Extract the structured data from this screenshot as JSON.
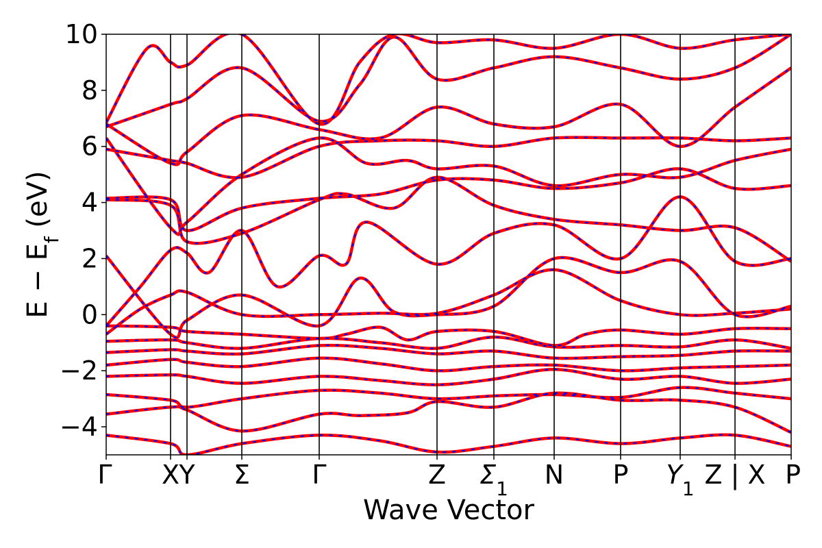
{
  "chart_data": {
    "type": "line",
    "title": "",
    "xlabel": "Wave Vector",
    "ylabel": "E − E_f (eV)",
    "ylabel_parts": {
      "prefix": "E − E",
      "subscript": "f",
      "suffix": " (eV)"
    },
    "ylim": [
      -5,
      10
    ],
    "yticks": [
      -4,
      -2,
      0,
      2,
      4,
      6,
      8,
      10
    ],
    "ytick_labels": [
      "−4",
      "−2",
      "0",
      "2",
      "4",
      "6",
      "8",
      "10"
    ],
    "grid": false,
    "legend": "none",
    "kpath": [
      {
        "label": "Γ",
        "sub": "",
        "x": 0.0
      },
      {
        "label": "X",
        "sub": "",
        "x": 0.094
      },
      {
        "label": "Y",
        "sub": "",
        "x": 0.118
      },
      {
        "label": "Σ",
        "sub": "",
        "x": 0.198
      },
      {
        "label": "Γ",
        "sub": "",
        "x": 0.311
      },
      {
        "label": "Z",
        "sub": "",
        "x": 0.483
      },
      {
        "label": "Σ",
        "sub": "1",
        "x": 0.566
      },
      {
        "label": "N",
        "sub": "",
        "x": 0.654
      },
      {
        "label": "P",
        "sub": "",
        "x": 0.751
      },
      {
        "label": "Y",
        "sub": "1",
        "x": 0.838
      },
      {
        "label": "Z | X",
        "sub": "",
        "x": 0.918
      },
      {
        "label": "P",
        "sub": "",
        "x": 1.0
      }
    ],
    "series": [
      {
        "style": "red solid",
        "bands": [
          [
            [
              0.0,
              -4.3
            ],
            [
              0.094,
              -4.6
            ],
            [
              0.118,
              -5.0
            ],
            [
              0.198,
              -4.6
            ],
            [
              0.311,
              -4.3
            ],
            [
              0.4,
              -4.5
            ],
            [
              0.483,
              -4.9
            ],
            [
              0.566,
              -4.7
            ],
            [
              0.654,
              -4.4
            ],
            [
              0.751,
              -4.6
            ],
            [
              0.838,
              -4.4
            ],
            [
              0.918,
              -4.3
            ],
            [
              1.0,
              -4.7
            ]
          ],
          [
            [
              0.0,
              -3.55
            ],
            [
              0.094,
              -3.3
            ],
            [
              0.118,
              -3.4
            ],
            [
              0.198,
              -4.15
            ],
            [
              0.311,
              -3.55
            ],
            [
              0.37,
              -3.6
            ],
            [
              0.44,
              -3.5
            ],
            [
              0.483,
              -3.1
            ],
            [
              0.566,
              -3.3
            ],
            [
              0.654,
              -2.8
            ],
            [
              0.751,
              -3.05
            ],
            [
              0.838,
              -3.05
            ],
            [
              0.918,
              -3.3
            ],
            [
              1.0,
              -4.2
            ]
          ],
          [
            [
              0.0,
              -2.85
            ],
            [
              0.094,
              -3.05
            ],
            [
              0.118,
              -3.3
            ],
            [
              0.198,
              -3.0
            ],
            [
              0.311,
              -2.7
            ],
            [
              0.4,
              -2.8
            ],
            [
              0.483,
              -3.0
            ],
            [
              0.566,
              -2.9
            ],
            [
              0.654,
              -2.85
            ],
            [
              0.751,
              -2.95
            ],
            [
              0.838,
              -2.6
            ],
            [
              0.918,
              -2.8
            ],
            [
              1.0,
              -3.0
            ]
          ],
          [
            [
              0.0,
              -2.2
            ],
            [
              0.094,
              -2.15
            ],
            [
              0.118,
              -2.2
            ],
            [
              0.198,
              -2.45
            ],
            [
              0.311,
              -2.2
            ],
            [
              0.4,
              -2.35
            ],
            [
              0.483,
              -2.5
            ],
            [
              0.566,
              -2.3
            ],
            [
              0.654,
              -1.95
            ],
            [
              0.751,
              -2.3
            ],
            [
              0.838,
              -2.2
            ],
            [
              0.918,
              -2.45
            ],
            [
              1.0,
              -2.3
            ]
          ],
          [
            [
              0.0,
              -1.8
            ],
            [
              0.094,
              -1.6
            ],
            [
              0.118,
              -1.7
            ],
            [
              0.198,
              -1.85
            ],
            [
              0.311,
              -1.55
            ],
            [
              0.4,
              -1.75
            ],
            [
              0.483,
              -2.0
            ],
            [
              0.566,
              -1.85
            ],
            [
              0.654,
              -1.8
            ],
            [
              0.751,
              -2.0
            ],
            [
              0.838,
              -1.9
            ],
            [
              0.918,
              -1.85
            ],
            [
              1.0,
              -1.8
            ]
          ],
          [
            [
              0.0,
              -1.35
            ],
            [
              0.094,
              -1.25
            ],
            [
              0.118,
              -1.3
            ],
            [
              0.198,
              -1.4
            ],
            [
              0.311,
              -1.1
            ],
            [
              0.4,
              -1.2
            ],
            [
              0.483,
              -1.4
            ],
            [
              0.566,
              -1.3
            ],
            [
              0.654,
              -1.55
            ],
            [
              0.751,
              -1.5
            ],
            [
              0.838,
              -1.45
            ],
            [
              0.918,
              -1.3
            ],
            [
              1.0,
              -1.3
            ]
          ],
          [
            [
              0.0,
              -0.95
            ],
            [
              0.094,
              -0.9
            ],
            [
              0.118,
              -1.0
            ],
            [
              0.198,
              -1.2
            ],
            [
              0.311,
              -0.85
            ],
            [
              0.4,
              -1.0
            ],
            [
              0.483,
              -1.2
            ],
            [
              0.566,
              -0.8
            ],
            [
              0.654,
              -1.15
            ],
            [
              0.751,
              -1.1
            ],
            [
              0.838,
              -1.15
            ],
            [
              0.918,
              -0.9
            ],
            [
              1.0,
              -1.2
            ]
          ],
          [
            [
              0.0,
              -0.4
            ],
            [
              0.094,
              -0.45
            ],
            [
              0.118,
              -0.6
            ],
            [
              0.198,
              -0.7
            ],
            [
              0.311,
              -0.85
            ],
            [
              0.35,
              -0.7
            ],
            [
              0.4,
              -0.45
            ],
            [
              0.44,
              -0.9
            ],
            [
              0.483,
              -0.6
            ],
            [
              0.566,
              -0.6
            ],
            [
              0.654,
              -1.1
            ],
            [
              0.7,
              -0.7
            ],
            [
              0.751,
              -0.55
            ],
            [
              0.838,
              -0.7
            ],
            [
              0.918,
              -0.5
            ],
            [
              1.0,
              -0.5
            ]
          ],
          [
            [
              0.0,
              -0.7
            ],
            [
              0.05,
              0.2
            ],
            [
              0.094,
              0.7
            ],
            [
              0.118,
              0.8
            ],
            [
              0.198,
              0.0
            ],
            [
              0.311,
              0.0
            ],
            [
              0.4,
              0.05
            ],
            [
              0.483,
              0.05
            ],
            [
              0.566,
              0.7
            ],
            [
              0.654,
              1.6
            ],
            [
              0.751,
              0.5
            ],
            [
              0.838,
              0.0
            ],
            [
              0.918,
              0.05
            ],
            [
              1.0,
              0.2
            ]
          ],
          [
            [
              0.0,
              2.1
            ],
            [
              0.094,
              -0.7
            ],
            [
              0.118,
              -0.2
            ],
            [
              0.198,
              0.7
            ],
            [
              0.311,
              -0.4
            ],
            [
              0.37,
              1.3
            ],
            [
              0.42,
              0.1
            ],
            [
              0.483,
              0.0
            ],
            [
              0.566,
              0.3
            ],
            [
              0.654,
              2.0
            ],
            [
              0.751,
              1.5
            ],
            [
              0.838,
              1.9
            ],
            [
              0.918,
              0.0
            ],
            [
              1.0,
              0.3
            ]
          ],
          [
            [
              0.0,
              -0.4
            ],
            [
              0.05,
              1.0
            ],
            [
              0.094,
              2.3
            ],
            [
              0.118,
              2.2
            ],
            [
              0.15,
              1.5
            ],
            [
              0.198,
              3.0
            ],
            [
              0.25,
              1.0
            ],
            [
              0.311,
              2.1
            ],
            [
              0.35,
              1.8
            ],
            [
              0.38,
              3.3
            ],
            [
              0.483,
              1.8
            ],
            [
              0.566,
              2.9
            ],
            [
              0.654,
              3.2
            ],
            [
              0.751,
              2.0
            ],
            [
              0.838,
              4.2
            ],
            [
              0.918,
              1.9
            ],
            [
              1.0,
              2.0
            ]
          ],
          [
            [
              0.0,
              4.1
            ],
            [
              0.094,
              3.9
            ],
            [
              0.118,
              2.6
            ],
            [
              0.198,
              2.9
            ],
            [
              0.311,
              4.1
            ],
            [
              0.35,
              4.3
            ],
            [
              0.42,
              3.8
            ],
            [
              0.483,
              4.9
            ],
            [
              0.566,
              3.9
            ],
            [
              0.654,
              3.4
            ],
            [
              0.751,
              3.2
            ],
            [
              0.838,
              3.0
            ],
            [
              0.918,
              3.1
            ],
            [
              1.0,
              1.9
            ]
          ],
          [
            [
              0.0,
              4.15
            ],
            [
              0.094,
              4.1
            ],
            [
              0.118,
              3.0
            ],
            [
              0.198,
              3.8
            ],
            [
              0.311,
              4.15
            ],
            [
              0.4,
              4.3
            ],
            [
              0.483,
              4.8
            ],
            [
              0.566,
              4.8
            ],
            [
              0.654,
              4.5
            ],
            [
              0.751,
              4.7
            ],
            [
              0.838,
              5.2
            ],
            [
              0.918,
              4.5
            ],
            [
              1.0,
              4.6
            ]
          ],
          [
            [
              0.0,
              6.3
            ],
            [
              0.094,
              3.1
            ],
            [
              0.118,
              3.3
            ],
            [
              0.198,
              5.0
            ],
            [
              0.311,
              6.3
            ],
            [
              0.38,
              5.4
            ],
            [
              0.44,
              5.5
            ],
            [
              0.483,
              5.2
            ],
            [
              0.566,
              5.3
            ],
            [
              0.654,
              4.6
            ],
            [
              0.751,
              5.0
            ],
            [
              0.838,
              4.9
            ],
            [
              0.918,
              5.5
            ],
            [
              1.0,
              5.9
            ]
          ],
          [
            [
              0.0,
              5.9
            ],
            [
              0.094,
              5.5
            ],
            [
              0.118,
              5.4
            ],
            [
              0.198,
              4.9
            ],
            [
              0.311,
              6.0
            ],
            [
              0.4,
              6.2
            ],
            [
              0.483,
              6.2
            ],
            [
              0.566,
              6.0
            ],
            [
              0.654,
              6.3
            ],
            [
              0.751,
              6.3
            ],
            [
              0.838,
              6.3
            ],
            [
              0.918,
              6.2
            ],
            [
              1.0,
              6.3
            ]
          ],
          [
            [
              0.0,
              6.8
            ],
            [
              0.094,
              5.4
            ],
            [
              0.118,
              5.8
            ],
            [
              0.198,
              7.1
            ],
            [
              0.311,
              6.6
            ],
            [
              0.4,
              6.3
            ],
            [
              0.483,
              7.4
            ],
            [
              0.566,
              6.8
            ],
            [
              0.654,
              6.7
            ],
            [
              0.751,
              7.5
            ],
            [
              0.838,
              6.0
            ],
            [
              0.918,
              7.4
            ],
            [
              1.0,
              8.8
            ]
          ],
          [
            [
              0.0,
              6.7
            ],
            [
              0.094,
              7.5
            ],
            [
              0.118,
              7.7
            ],
            [
              0.198,
              8.8
            ],
            [
              0.311,
              6.9
            ],
            [
              0.37,
              8.2
            ],
            [
              0.42,
              9.9
            ],
            [
              0.483,
              8.4
            ],
            [
              0.566,
              8.8
            ],
            [
              0.654,
              9.2
            ],
            [
              0.751,
              8.8
            ],
            [
              0.838,
              8.4
            ],
            [
              0.918,
              8.8
            ],
            [
              1.0,
              10.0
            ]
          ],
          [
            [
              0.0,
              6.85
            ],
            [
              0.06,
              9.5
            ],
            [
              0.094,
              9.0
            ],
            [
              0.118,
              8.9
            ],
            [
              0.198,
              10.0
            ],
            [
              0.311,
              6.8
            ],
            [
              0.37,
              9.0
            ],
            [
              0.42,
              10.0
            ],
            [
              0.483,
              9.7
            ],
            [
              0.566,
              9.8
            ],
            [
              0.654,
              9.5
            ],
            [
              0.751,
              10.0
            ],
            [
              0.838,
              9.5
            ],
            [
              0.918,
              9.8
            ],
            [
              1.0,
              10.0
            ]
          ]
        ]
      },
      {
        "style": "blue dashed",
        "bands": "same as red series"
      }
    ]
  }
}
